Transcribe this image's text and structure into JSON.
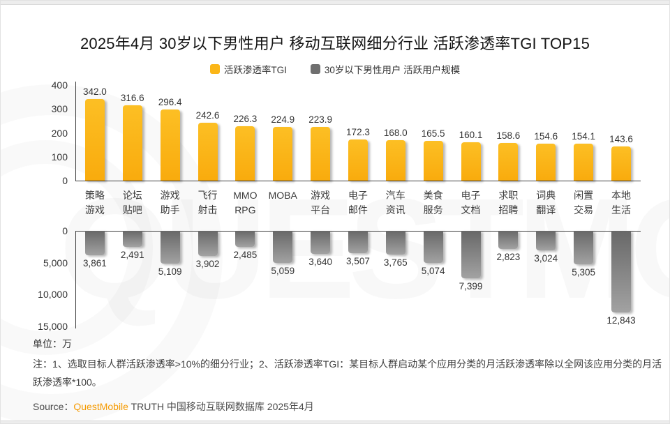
{
  "title": "2025年4月 30岁以下男性用户 移动互联网细分行业 活跃渗透率TGI TOP15",
  "legend": [
    {
      "label": "活跃渗透率TGI",
      "color": "#fbb618"
    },
    {
      "label": "30岁以下男性用户 活跃用户规模",
      "color": "#6f6f6f"
    }
  ],
  "watermark": {
    "text": "QUESTMOBILE"
  },
  "unit_note": "单位：万",
  "footnote": "注：1、选取目标人群活跃渗透率>10%的细分行业；2、活跃渗透率TGI：某目标人群启动某个应用分类的月活跃渗透率除以全网该应用分类的月活跃渗透率*100。",
  "source": {
    "prefix": "Source：",
    "brand": "QuestMobile",
    "suffix": " TRUTH 中国移动互联网数据库 2025年4月",
    "brand_color": "#f59a00"
  },
  "chart_data": {
    "type": "bar",
    "title": "2025年4月 30岁以下男性用户 移动互联网细分行业 活跃渗透率TGI TOP15",
    "legend_position": "top",
    "grid": false,
    "unit": "万",
    "categories": [
      "策略游戏",
      "论坛贴吧",
      "游戏助手",
      "飞行射击",
      "MMORPG",
      "MOBA",
      "游戏平台",
      "电子邮件",
      "汽车资讯",
      "美食服务",
      "电子文档",
      "求职招聘",
      "词典翻译",
      "闲置交易",
      "本地生活"
    ],
    "categories_display": [
      [
        "策略",
        "游戏"
      ],
      [
        "论坛",
        "贴吧"
      ],
      [
        "游戏",
        "助手"
      ],
      [
        "飞行",
        "射击"
      ],
      [
        "MMO",
        "RPG"
      ],
      [
        "MOBA"
      ],
      [
        "游戏",
        "平台"
      ],
      [
        "电子",
        "邮件"
      ],
      [
        "汽车",
        "资讯"
      ],
      [
        "美食",
        "服务"
      ],
      [
        "电子",
        "文档"
      ],
      [
        "求职",
        "招聘"
      ],
      [
        "词典",
        "翻译"
      ],
      [
        "闲置",
        "交易"
      ],
      [
        "本地",
        "生活"
      ]
    ],
    "series": [
      {
        "name": "活跃渗透率TGI",
        "color": "#fbb618",
        "orientation": "up",
        "ylim": [
          0,
          400
        ],
        "axis_ticks": [
          "400",
          "300",
          "200",
          "100",
          "0"
        ],
        "values": [
          342.0,
          316.6,
          296.4,
          242.6,
          226.3,
          224.9,
          223.9,
          172.3,
          168.0,
          165.5,
          160.1,
          158.6,
          154.6,
          154.1,
          143.6
        ],
        "value_labels": [
          "342.0",
          "316.6",
          "296.4",
          "242.6",
          "226.3",
          "224.9",
          "223.9",
          "172.3",
          "168.0",
          "165.5",
          "160.1",
          "158.6",
          "154.6",
          "154.1",
          "143.6"
        ]
      },
      {
        "name": "30岁以下男性用户 活跃用户规模",
        "color": "#6f6f6f",
        "orientation": "down",
        "ylim": [
          0,
          15000
        ],
        "axis_ticks": [
          "0",
          "5,000",
          "10,000",
          "15,000"
        ],
        "values": [
          3861,
          2491,
          5109,
          3902,
          2485,
          5059,
          3640,
          3507,
          3765,
          5074,
          7399,
          2823,
          3024,
          5305,
          12843
        ],
        "value_labels": [
          "3,861",
          "2,491",
          "5,109",
          "3,902",
          "2,485",
          "5,059",
          "3,640",
          "3,507",
          "3,765",
          "5,074",
          "7,399",
          "2,823",
          "3,024",
          "5,305",
          "12,843"
        ]
      }
    ]
  }
}
